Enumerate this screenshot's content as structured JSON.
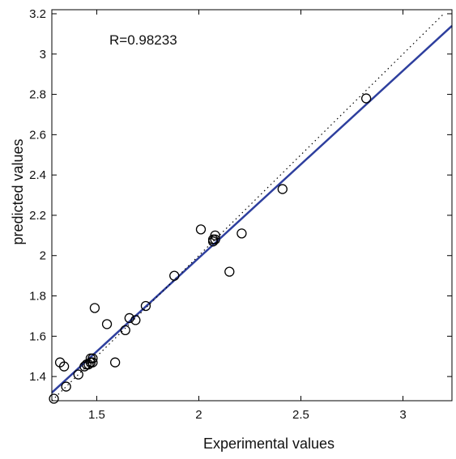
{
  "chart_data": {
    "type": "scatter",
    "xlabel": "Experimental values",
    "ylabel": "predicted values",
    "xlim": [
      1.28,
      3.24
    ],
    "ylim": [
      1.28,
      3.22
    ],
    "x_ticks": [
      1.5,
      2,
      2.5,
      3
    ],
    "y_ticks": [
      1.4,
      1.6,
      1.8,
      2,
      2.2,
      2.4,
      2.6,
      2.8,
      3,
      3.2
    ],
    "x_tick_labels": [
      "1.5",
      "2",
      "2.5",
      "3"
    ],
    "y_tick_labels": [
      "1.4",
      "1.6",
      "1.8",
      "2",
      "2.2",
      "2.4",
      "2.6",
      "2.8",
      "3",
      "3.2"
    ],
    "grid": false,
    "annotation": "R=0.98233",
    "series": [
      {
        "kind": "points",
        "marker": "circle",
        "color": "#000000",
        "x": [
          1.29,
          1.32,
          1.34,
          1.35,
          1.41,
          1.44,
          1.45,
          1.46,
          1.47,
          1.47,
          1.48,
          1.48,
          1.49,
          1.55,
          1.59,
          1.64,
          1.66,
          1.69,
          1.74,
          1.88,
          2.01,
          2.07,
          2.07,
          2.08,
          2.08,
          2.15,
          2.21,
          2.41,
          2.82
        ],
        "y": [
          1.29,
          1.47,
          1.45,
          1.35,
          1.41,
          1.45,
          1.46,
          1.46,
          1.47,
          1.49,
          1.47,
          1.49,
          1.74,
          1.66,
          1.47,
          1.63,
          1.69,
          1.68,
          1.75,
          1.9,
          2.13,
          2.08,
          2.07,
          2.1,
          2.08,
          1.92,
          2.11,
          2.33,
          2.78
        ]
      },
      {
        "kind": "fit-line",
        "color": "#2e3f9e",
        "x": [
          1.28,
          3.24
        ],
        "y": [
          1.32,
          3.14
        ]
      },
      {
        "kind": "identity-line",
        "style": "dotted",
        "color": "#000000",
        "x": [
          1.28,
          3.2
        ],
        "y": [
          1.28,
          3.2
        ]
      }
    ]
  }
}
